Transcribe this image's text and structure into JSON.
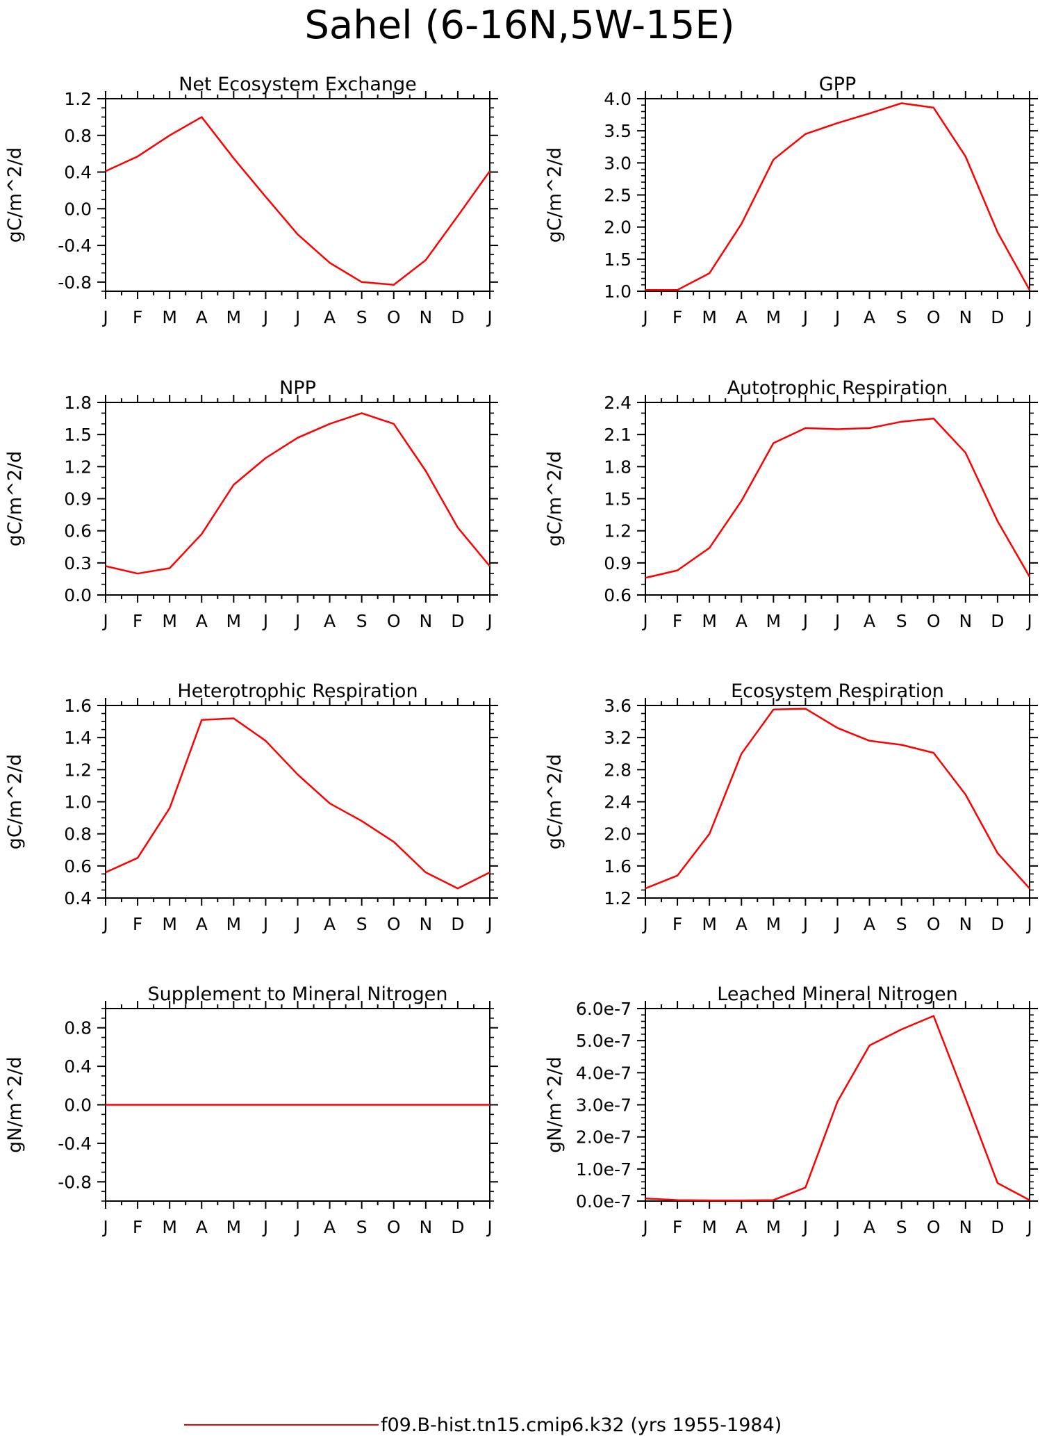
{
  "page_title": "Sahel (6-16N,5W-15E)",
  "legend": {
    "label": "f09.B-hist.tn15.cmip6.k32 (yrs 1955-1984)",
    "color": "#ff0000"
  },
  "colors": {
    "line": "#ff0000",
    "axis": "#000000"
  },
  "month_labels": [
    "J",
    "F",
    "M",
    "A",
    "M",
    "J",
    "J",
    "A",
    "S",
    "O",
    "N",
    "D",
    "J"
  ],
  "chart_data": [
    {
      "type": "line",
      "title": "Net Ecosystem Exchange",
      "ylabel": "gC/m^2/d",
      "ylim": [
        -0.9,
        1.2
      ],
      "yticks": [
        -0.8,
        -0.4,
        0.0,
        0.4,
        0.8,
        1.2
      ],
      "ytick_labels": [
        "-0.8",
        "-0.4",
        "0.0",
        "0.4",
        "0.8",
        "1.2"
      ],
      "minor_step": 0.1,
      "categories": [
        "J",
        "F",
        "M",
        "A",
        "M",
        "J",
        "J",
        "A",
        "S",
        "O",
        "N",
        "D",
        "J"
      ],
      "values": [
        0.41,
        0.57,
        0.8,
        1.0,
        0.55,
        0.13,
        -0.28,
        -0.59,
        -0.8,
        -0.83,
        -0.56,
        -0.08,
        0.41
      ]
    },
    {
      "type": "line",
      "title": "GPP",
      "ylabel": "gC/m^2/d",
      "ylim": [
        1.0,
        4.0
      ],
      "yticks": [
        1.0,
        1.5,
        2.0,
        2.5,
        3.0,
        3.5,
        4.0
      ],
      "ytick_labels": [
        "1.0",
        "1.5",
        "2.0",
        "2.5",
        "3.0",
        "3.5",
        "4.0"
      ],
      "minor_step": 0.1,
      "categories": [
        "J",
        "F",
        "M",
        "A",
        "M",
        "J",
        "J",
        "A",
        "S",
        "O",
        "N",
        "D",
        "J"
      ],
      "values": [
        1.02,
        1.02,
        1.28,
        2.05,
        3.05,
        3.45,
        3.62,
        3.77,
        3.93,
        3.86,
        3.1,
        1.92,
        1.02
      ]
    },
    {
      "type": "line",
      "title": "NPP",
      "ylabel": "gC/m^2/d",
      "ylim": [
        0.0,
        1.8
      ],
      "yticks": [
        0.0,
        0.3,
        0.6,
        0.9,
        1.2,
        1.5,
        1.8
      ],
      "ytick_labels": [
        "0.0",
        "0.3",
        "0.6",
        "0.9",
        "1.2",
        "1.5",
        "1.8"
      ],
      "minor_step": 0.1,
      "categories": [
        "J",
        "F",
        "M",
        "A",
        "M",
        "J",
        "J",
        "A",
        "S",
        "O",
        "N",
        "D",
        "J"
      ],
      "values": [
        0.27,
        0.2,
        0.25,
        0.57,
        1.03,
        1.28,
        1.47,
        1.6,
        1.7,
        1.6,
        1.16,
        0.63,
        0.27
      ]
    },
    {
      "type": "line",
      "title": "Autotrophic Respiration",
      "ylabel": "gC/m^2/d",
      "ylim": [
        0.6,
        2.4
      ],
      "yticks": [
        0.6,
        0.9,
        1.2,
        1.5,
        1.8,
        2.1,
        2.4
      ],
      "ytick_labels": [
        "0.6",
        "0.9",
        "1.2",
        "1.5",
        "1.8",
        "2.1",
        "2.4"
      ],
      "minor_step": 0.1,
      "categories": [
        "J",
        "F",
        "M",
        "A",
        "M",
        "J",
        "J",
        "A",
        "S",
        "O",
        "N",
        "D",
        "J"
      ],
      "values": [
        0.76,
        0.83,
        1.04,
        1.48,
        2.02,
        2.16,
        2.15,
        2.16,
        2.22,
        2.25,
        1.93,
        1.29,
        0.77
      ]
    },
    {
      "type": "line",
      "title": "Heterotrophic Respiration",
      "ylabel": "gC/m^2/d",
      "ylim": [
        0.4,
        1.6
      ],
      "yticks": [
        0.4,
        0.6,
        0.8,
        1.0,
        1.2,
        1.4,
        1.6
      ],
      "ytick_labels": [
        "0.4",
        "0.6",
        "0.8",
        "1.0",
        "1.2",
        "1.4",
        "1.6"
      ],
      "minor_step": 0.05,
      "categories": [
        "J",
        "F",
        "M",
        "A",
        "M",
        "J",
        "J",
        "A",
        "S",
        "O",
        "N",
        "D",
        "J"
      ],
      "values": [
        0.56,
        0.65,
        0.96,
        1.51,
        1.52,
        1.38,
        1.17,
        0.99,
        0.88,
        0.75,
        0.56,
        0.46,
        0.56
      ]
    },
    {
      "type": "line",
      "title": "Ecosystem Respiration",
      "ylabel": "gC/m^2/d",
      "ylim": [
        1.2,
        3.6
      ],
      "yticks": [
        1.2,
        1.6,
        2.0,
        2.4,
        2.8,
        3.2,
        3.6
      ],
      "ytick_labels": [
        "1.2",
        "1.6",
        "2.0",
        "2.4",
        "2.8",
        "3.2",
        "3.6"
      ],
      "minor_step": 0.1,
      "categories": [
        "J",
        "F",
        "M",
        "A",
        "M",
        "J",
        "J",
        "A",
        "S",
        "O",
        "N",
        "D",
        "J"
      ],
      "values": [
        1.32,
        1.48,
        2.0,
        3.0,
        3.55,
        3.56,
        3.32,
        3.16,
        3.11,
        3.01,
        2.49,
        1.76,
        1.32
      ]
    },
    {
      "type": "line",
      "title": "Supplement to Mineral Nitrogen",
      "ylabel": "gN/m^2/d",
      "ylim": [
        -1.0,
        1.0
      ],
      "yticks": [
        -0.8,
        -0.4,
        0.0,
        0.4,
        0.8
      ],
      "ytick_labels": [
        "-0.8",
        "-0.4",
        "0.0",
        "0.4",
        "0.8"
      ],
      "minor_step": 0.1,
      "categories": [
        "J",
        "F",
        "M",
        "A",
        "M",
        "J",
        "J",
        "A",
        "S",
        "O",
        "N",
        "D",
        "J"
      ],
      "values": [
        0,
        0,
        0,
        0,
        0,
        0,
        0,
        0,
        0,
        0,
        0,
        0,
        0
      ]
    },
    {
      "type": "line",
      "title": "Leached Mineral Nitrogen",
      "ylabel": "gN/m^2/d",
      "ylim": [
        0.0,
        6e-07
      ],
      "yticks": [
        0.0,
        1e-07,
        2e-07,
        3e-07,
        4e-07,
        5e-07,
        6e-07
      ],
      "ytick_labels": [
        "0.0e-7",
        "1.0e-7",
        "2.0e-7",
        "3.0e-7",
        "4.0e-7",
        "5.0e-7",
        "6.0e-7"
      ],
      "minor_step": 2e-08,
      "categories": [
        "J",
        "F",
        "M",
        "A",
        "M",
        "J",
        "J",
        "A",
        "S",
        "O",
        "N",
        "D",
        "J"
      ],
      "values": [
        8e-09,
        3e-09,
        2e-09,
        2e-09,
        3e-09,
        4.2e-08,
        3.1e-07,
        4.85e-07,
        5.35e-07,
        5.77e-07,
        3.2e-07,
        5.6e-08,
        3e-09
      ]
    }
  ]
}
